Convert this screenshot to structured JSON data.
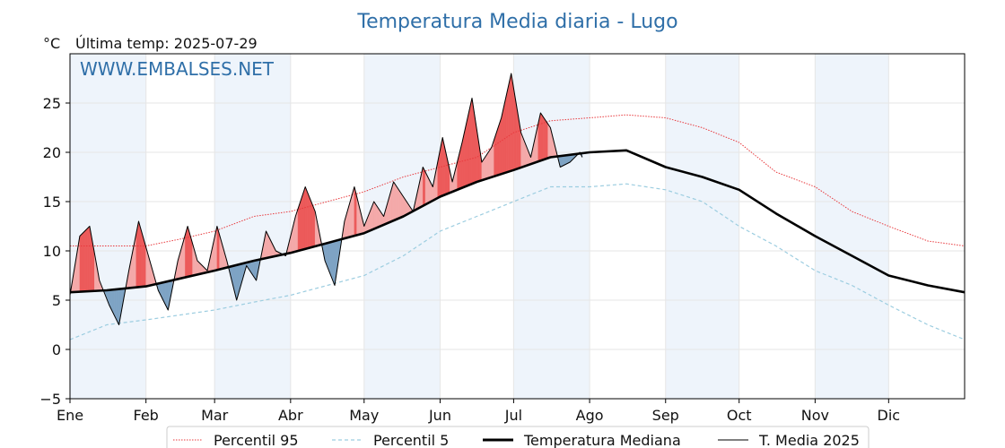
{
  "chart_data": {
    "type": "line",
    "title": "Temperatura Media diaria - Lugo",
    "unit_label": "°C",
    "subtitle": "Última temp: 2025-07-29",
    "watermark": "WWW.EMBALSES.NET",
    "ylim": [
      -5,
      30
    ],
    "y_ticks": [
      "−5",
      "0",
      "5",
      "10",
      "15",
      "20",
      "25"
    ],
    "y_tick_values": [
      -5,
      0,
      5,
      10,
      15,
      20,
      25
    ],
    "x_range_days": [
      0,
      365
    ],
    "months": [
      "Ene",
      "Feb",
      "Mar",
      "Abr",
      "May",
      "Jun",
      "Jul",
      "Ago",
      "Sep",
      "Oct",
      "Nov",
      "Dic"
    ],
    "month_start_days": [
      0,
      31,
      59,
      90,
      120,
      151,
      181,
      212,
      243,
      273,
      304,
      334
    ],
    "grid": true,
    "legend_position": "bottom",
    "colors": {
      "p95": "#e8393d",
      "p5": "#9ccde0",
      "median": "#000000",
      "media2025": "#000000",
      "above_fill": "#f4a9a9",
      "above_fill_strong": "#ec5a5a",
      "below_fill": "#7ea3c4",
      "band": "#eef4fb"
    },
    "series": [
      {
        "name": "Percentil 95",
        "style": "dotted-red",
        "x": [
          0,
          15,
          31,
          45,
          59,
          75,
          90,
          105,
          120,
          136,
          151,
          166,
          181,
          196,
          212,
          227,
          243,
          258,
          273,
          288,
          304,
          319,
          334,
          350,
          365
        ],
        "y": [
          10.5,
          10.5,
          10.5,
          11.2,
          12.0,
          13.5,
          14.0,
          15.0,
          16.0,
          17.5,
          18.5,
          19.5,
          22.0,
          23.2,
          23.5,
          23.8,
          23.5,
          22.5,
          21.0,
          18.0,
          16.5,
          14.0,
          12.5,
          11.0,
          10.5
        ]
      },
      {
        "name": "Percentil 5",
        "style": "dashed-lightblue",
        "x": [
          0,
          15,
          31,
          45,
          59,
          75,
          90,
          105,
          120,
          136,
          151,
          166,
          181,
          196,
          212,
          227,
          243,
          258,
          273,
          288,
          304,
          319,
          334,
          350,
          365
        ],
        "y": [
          1.0,
          2.5,
          3.0,
          3.5,
          4.0,
          4.8,
          5.5,
          6.5,
          7.5,
          9.5,
          12.0,
          13.5,
          15.0,
          16.5,
          16.5,
          16.8,
          16.2,
          15.0,
          12.5,
          10.5,
          8.0,
          6.5,
          4.5,
          2.5,
          1.0
        ]
      },
      {
        "name": "Temperatura Mediana",
        "style": "thick-black",
        "x": [
          0,
          15,
          31,
          45,
          59,
          75,
          90,
          105,
          120,
          136,
          151,
          166,
          181,
          196,
          212,
          227,
          243,
          258,
          273,
          288,
          304,
          319,
          334,
          350,
          365
        ],
        "y": [
          5.8,
          6.0,
          6.4,
          7.2,
          8.0,
          9.0,
          9.8,
          10.8,
          11.8,
          13.5,
          15.5,
          17.0,
          18.2,
          19.5,
          20.0,
          20.2,
          18.5,
          17.5,
          16.2,
          13.8,
          11.5,
          9.5,
          7.5,
          6.5,
          5.8
        ]
      },
      {
        "name": "T. Media 2025",
        "style": "thin-black",
        "x": [
          0,
          4,
          8,
          12,
          16,
          20,
          24,
          28,
          32,
          36,
          40,
          44,
          48,
          52,
          56,
          60,
          64,
          68,
          72,
          76,
          80,
          84,
          88,
          92,
          96,
          100,
          104,
          108,
          112,
          116,
          120,
          124,
          128,
          132,
          136,
          140,
          144,
          148,
          152,
          156,
          160,
          164,
          168,
          172,
          176,
          180,
          184,
          188,
          192,
          196,
          200,
          204,
          208,
          209
        ],
        "y": [
          5.5,
          11.5,
          12.5,
          7.0,
          4.5,
          2.5,
          8.0,
          13.0,
          9.5,
          6.0,
          4.0,
          9.0,
          12.5,
          9.0,
          8.0,
          12.5,
          9.0,
          5.0,
          8.5,
          7.0,
          12.0,
          10.0,
          9.5,
          13.5,
          16.5,
          14.0,
          9.0,
          6.5,
          13.0,
          16.5,
          12.5,
          15.0,
          13.5,
          17.0,
          15.5,
          14.0,
          18.5,
          16.5,
          21.5,
          17.0,
          21.0,
          25.5,
          19.0,
          20.5,
          23.5,
          28.0,
          22.0,
          19.5,
          24.0,
          22.5,
          18.5,
          19.0,
          20.0,
          19.5
        ]
      }
    ]
  }
}
